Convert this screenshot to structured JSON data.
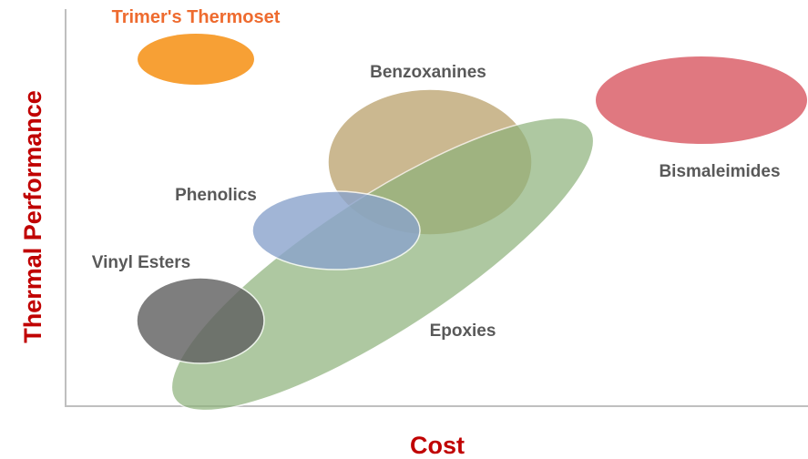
{
  "axes": {
    "y_label": "Thermal Performance",
    "x_label": "Cost"
  },
  "regions": [
    {
      "label": "Trimer's Thermoset"
    },
    {
      "label": "Benzoxanines"
    },
    {
      "label": "Bismaleimides"
    },
    {
      "label": "Phenolics"
    },
    {
      "label": "Vinyl Esters"
    },
    {
      "label": "Epoxies"
    }
  ]
}
